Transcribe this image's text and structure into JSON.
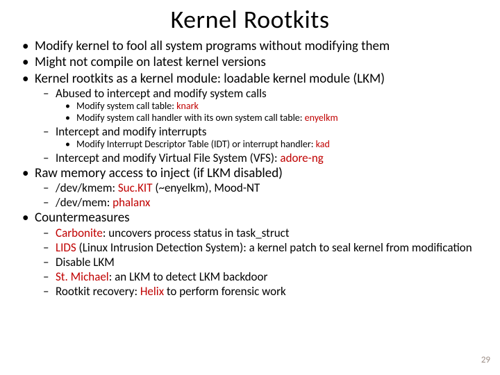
{
  "title": "Kernel Rootkits",
  "page_number": "29",
  "colors": {
    "highlight": "#c00000",
    "pagenum": "#9b8d85",
    "text": "#000000",
    "bg": "#ffffff"
  },
  "fontsize": {
    "title": 36,
    "l1": 19,
    "l2": 17,
    "l3": 14
  },
  "b1": {
    "i0": "Modify kernel to fool all system programs without modifying them",
    "i1": "Might not compile on latest kernel versions",
    "i2": "Kernel rootkits as a kernel module: loadable kernel module (LKM)",
    "i3": "Raw memory access to inject (if LKM disabled)",
    "i4": "Countermeasures"
  },
  "b2a": {
    "i0": "Abused to intercept and modify system calls",
    "i1": "Intercept and modify interrupts",
    "i2_pre": "Intercept and modify Virtual File System (VFS): ",
    "i2_hl": "adore-ng"
  },
  "b3a": {
    "i0_pre": "Modify system call table: ",
    "i0_hl": "knark",
    "i1_pre": "Modify system call handler with its own system call table:  ",
    "i1_hl": "enyelkm"
  },
  "b3b": {
    "i0_pre": "Modify Interrupt Descriptor Table (IDT) or interrupt handler: ",
    "i0_hl": "kad"
  },
  "b2b": {
    "i0_pre": "/dev/kmem: ",
    "i0_hl": "Suc.KIT",
    "i0_post": " (~enyelkm), Mood-NT",
    "i1_pre": "/dev/mem: ",
    "i1_hl": "phalanx"
  },
  "b2c": {
    "i0_hl": "Carbonite",
    "i0_post": ": uncovers process status in task_struct",
    "i1_hl": "LIDS",
    "i1_post": " (Linux Intrusion Detection System): a kernel patch to seal kernel from modification",
    "i2": "Disable LKM",
    "i3_hl": "St. Michael",
    "i3_post": ": an LKM to detect LKM backdoor",
    "i4_pre": "Rootkit recovery: ",
    "i4_hl": "Helix",
    "i4_post": " to perform forensic work"
  }
}
